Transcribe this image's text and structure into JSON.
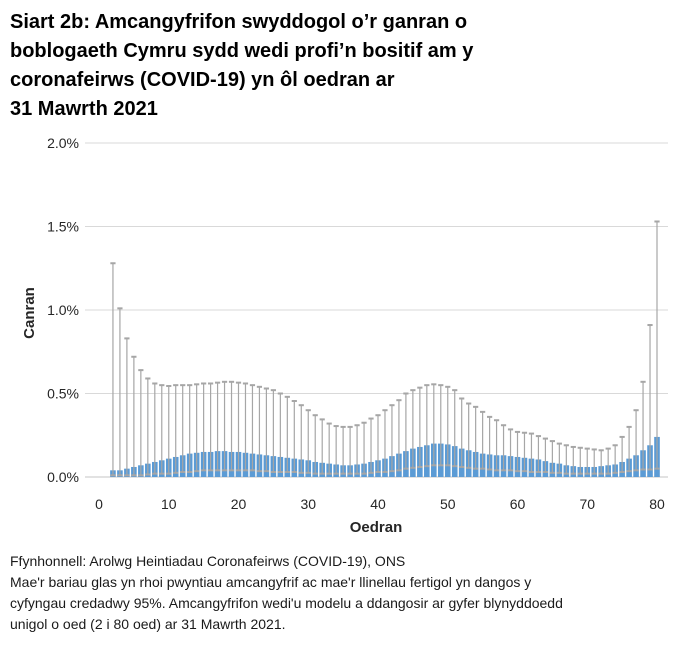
{
  "title": {
    "lines": [
      "Siart 2b: Amcangyfrifon swyddogol o’r ganran o",
      "boblogaeth Cymru sydd wedi profi’n bositif am y",
      "coronafeirws (COVID-19) yn ôl oedran ar",
      "31 Mawrth 2021"
    ]
  },
  "y_axis": {
    "label": "Canran",
    "ticks": [
      {
        "label": "0.0%",
        "value": 0.0
      },
      {
        "label": "0.5%",
        "value": 0.5
      },
      {
        "label": "1.0%",
        "value": 1.0
      },
      {
        "label": "1.5%",
        "value": 1.5
      },
      {
        "label": "2.0%",
        "value": 2.0
      }
    ]
  },
  "x_axis": {
    "label": "Oedran",
    "ticks": [
      {
        "label": "0",
        "value": 0
      },
      {
        "label": "10",
        "value": 10
      },
      {
        "label": "20",
        "value": 20
      },
      {
        "label": "30",
        "value": 30
      },
      {
        "label": "40",
        "value": 40
      },
      {
        "label": "50",
        "value": 50
      },
      {
        "label": "60",
        "value": 60
      },
      {
        "label": "70",
        "value": 70
      },
      {
        "label": "80",
        "value": 80
      }
    ]
  },
  "footer": {
    "source": "Ffynhonnell: Arolwg Heintiadau Coronafeirws (COVID-19), ONS",
    "note_lines": [
      "Mae'r bariau glas yn rhoi pwyntiau amcangyfrif ac mae'r llinellau fertigol yn dangos y",
      "cyfyngau credadwy 95%. Amcangyfrifon wedi'u modelu a ddangosir ar gyfer blynyddoedd",
      "unigol o oed (2 i 80 oed) ar 31 Mawrth 2021."
    ]
  },
  "chart_data": {
    "type": "bar",
    "title": "Siart 2b: Amcangyfrifon swyddogol o’r ganran o boblogaeth Cymru sydd wedi profi’n bositif am y coronafeirws (COVID-19) yn ôl oedran ar 31 Mawrth 2021",
    "xlabel": "Oedran",
    "ylabel": "Canran",
    "ylim": [
      0,
      2.0
    ],
    "xlim": [
      0,
      80
    ],
    "grid": true,
    "unit": "percent",
    "x": [
      2,
      3,
      4,
      5,
      6,
      7,
      8,
      9,
      10,
      11,
      12,
      13,
      14,
      15,
      16,
      17,
      18,
      19,
      20,
      21,
      22,
      23,
      24,
      25,
      26,
      27,
      28,
      29,
      30,
      31,
      32,
      33,
      34,
      35,
      36,
      37,
      38,
      39,
      40,
      41,
      42,
      43,
      44,
      45,
      46,
      47,
      48,
      49,
      50,
      51,
      52,
      53,
      54,
      55,
      56,
      57,
      58,
      59,
      60,
      61,
      62,
      63,
      64,
      65,
      66,
      67,
      68,
      69,
      70,
      71,
      72,
      73,
      74,
      75,
      76,
      77,
      78,
      79,
      80
    ],
    "series": [
      {
        "name": "amcangyfrif",
        "values": [
          0.04,
          0.04,
          0.05,
          0.06,
          0.07,
          0.08,
          0.09,
          0.1,
          0.11,
          0.12,
          0.13,
          0.14,
          0.145,
          0.15,
          0.15,
          0.155,
          0.155,
          0.15,
          0.15,
          0.145,
          0.14,
          0.135,
          0.13,
          0.125,
          0.12,
          0.115,
          0.11,
          0.105,
          0.1,
          0.09,
          0.085,
          0.08,
          0.075,
          0.07,
          0.07,
          0.075,
          0.08,
          0.09,
          0.1,
          0.11,
          0.125,
          0.14,
          0.155,
          0.17,
          0.18,
          0.19,
          0.2,
          0.2,
          0.195,
          0.185,
          0.17,
          0.16,
          0.15,
          0.14,
          0.135,
          0.13,
          0.13,
          0.125,
          0.12,
          0.115,
          0.11,
          0.105,
          0.095,
          0.085,
          0.08,
          0.07,
          0.065,
          0.06,
          0.06,
          0.06,
          0.065,
          0.07,
          0.075,
          0.09,
          0.11,
          0.13,
          0.16,
          0.19,
          0.24
        ]
      },
      {
        "name": "cyfwng_isaf_95",
        "values": [
          0.01,
          0.01,
          0.01,
          0.01,
          0.01,
          0.015,
          0.02,
          0.02,
          0.02,
          0.025,
          0.03,
          0.03,
          0.035,
          0.04,
          0.04,
          0.04,
          0.04,
          0.04,
          0.04,
          0.04,
          0.04,
          0.035,
          0.035,
          0.03,
          0.03,
          0.03,
          0.03,
          0.025,
          0.025,
          0.02,
          0.02,
          0.02,
          0.02,
          0.02,
          0.02,
          0.02,
          0.02,
          0.025,
          0.03,
          0.03,
          0.035,
          0.04,
          0.05,
          0.055,
          0.06,
          0.065,
          0.07,
          0.07,
          0.07,
          0.065,
          0.06,
          0.055,
          0.05,
          0.05,
          0.045,
          0.04,
          0.04,
          0.04,
          0.035,
          0.035,
          0.03,
          0.03,
          0.03,
          0.025,
          0.025,
          0.02,
          0.02,
          0.02,
          0.02,
          0.02,
          0.02,
          0.02,
          0.025,
          0.03,
          0.035,
          0.04,
          0.045,
          0.045,
          0.05
        ]
      },
      {
        "name": "cyfwng_uchaf_95",
        "values": [
          1.28,
          1.01,
          0.83,
          0.72,
          0.64,
          0.59,
          0.56,
          0.55,
          0.545,
          0.55,
          0.55,
          0.55,
          0.555,
          0.56,
          0.56,
          0.565,
          0.57,
          0.57,
          0.565,
          0.56,
          0.55,
          0.54,
          0.53,
          0.52,
          0.5,
          0.48,
          0.455,
          0.43,
          0.4,
          0.37,
          0.345,
          0.32,
          0.305,
          0.3,
          0.3,
          0.31,
          0.325,
          0.35,
          0.37,
          0.4,
          0.43,
          0.46,
          0.5,
          0.52,
          0.535,
          0.55,
          0.555,
          0.55,
          0.54,
          0.52,
          0.47,
          0.44,
          0.42,
          0.39,
          0.36,
          0.34,
          0.31,
          0.285,
          0.27,
          0.265,
          0.26,
          0.245,
          0.23,
          0.215,
          0.2,
          0.19,
          0.18,
          0.175,
          0.17,
          0.165,
          0.16,
          0.17,
          0.19,
          0.24,
          0.3,
          0.4,
          0.57,
          0.91,
          1.53
        ]
      }
    ],
    "colors": {
      "bar": "#5b9bd5",
      "error_bar": "#a6a6a6",
      "gridline": "#d9d9d9",
      "axis_line": "#c6c6c6",
      "tick_text": "#262626"
    },
    "legend": "none"
  }
}
